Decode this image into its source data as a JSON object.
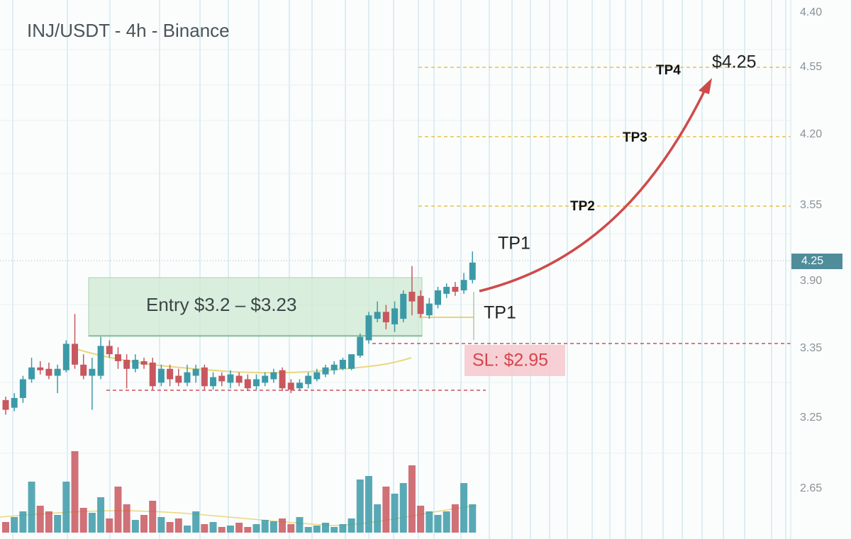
{
  "chart_data": {
    "type": "candlestick",
    "title": "INJ/USDT - 4h - Binance",
    "up_color": "#3c9aa8",
    "down_color": "#c8575f",
    "ylim": [
      3.076,
      3.852
    ],
    "open": [
      3.276,
      3.265,
      3.279,
      3.306,
      3.323,
      3.321,
      3.311,
      3.319,
      3.357,
      3.327,
      3.311,
      3.311,
      3.354,
      3.342,
      3.334,
      3.321,
      3.332,
      3.33,
      3.301,
      3.321,
      3.311,
      3.301,
      3.311,
      3.323,
      3.296,
      3.311,
      3.301,
      3.311,
      3.306,
      3.296,
      3.301,
      3.306,
      3.319,
      3.301,
      3.293,
      3.299,
      3.306,
      3.313,
      3.319,
      3.321,
      3.321,
      3.34,
      3.362,
      3.393,
      3.403,
      3.385,
      3.393,
      3.432,
      3.426,
      3.398,
      3.413,
      3.429,
      3.439,
      3.434,
      3.449
    ],
    "high": [
      3.281,
      3.286,
      3.311,
      3.337,
      3.332,
      3.33,
      3.327,
      3.362,
      3.4,
      3.342,
      3.337,
      3.367,
      3.362,
      3.352,
      3.342,
      3.342,
      3.337,
      3.337,
      3.327,
      3.327,
      3.321,
      3.327,
      3.327,
      3.327,
      3.316,
      3.316,
      3.319,
      3.316,
      3.313,
      3.313,
      3.316,
      3.321,
      3.323,
      3.306,
      3.306,
      3.316,
      3.321,
      3.327,
      3.332,
      3.337,
      3.342,
      3.372,
      3.403,
      3.418,
      3.413,
      3.418,
      3.434,
      3.469,
      3.434,
      3.423,
      3.439,
      3.444,
      3.446,
      3.459,
      3.49
    ],
    "low": [
      3.255,
      3.26,
      3.272,
      3.301,
      3.313,
      3.306,
      3.286,
      3.316,
      3.321,
      3.306,
      3.262,
      3.306,
      3.337,
      3.321,
      3.293,
      3.316,
      3.321,
      3.291,
      3.296,
      3.296,
      3.296,
      3.296,
      3.301,
      3.291,
      3.291,
      3.296,
      3.293,
      3.296,
      3.289,
      3.291,
      3.296,
      3.301,
      3.289,
      3.286,
      3.289,
      3.293,
      3.303,
      3.309,
      3.313,
      3.319,
      3.319,
      3.337,
      3.357,
      3.388,
      3.378,
      3.374,
      3.388,
      3.398,
      3.395,
      3.393,
      3.408,
      3.423,
      3.426,
      3.429,
      3.444
    ],
    "close": [
      3.262,
      3.279,
      3.306,
      3.323,
      3.319,
      3.311,
      3.321,
      3.357,
      3.327,
      3.311,
      3.321,
      3.354,
      3.342,
      3.332,
      3.321,
      3.334,
      3.327,
      3.296,
      3.321,
      3.306,
      3.301,
      3.316,
      3.321,
      3.296,
      3.309,
      3.303,
      3.313,
      3.301,
      3.293,
      3.306,
      3.311,
      3.316,
      3.293,
      3.291,
      3.301,
      3.311,
      3.316,
      3.323,
      3.327,
      3.334,
      3.342,
      3.367,
      3.398,
      3.403,
      3.388,
      3.408,
      3.429,
      3.418,
      3.4,
      3.415,
      3.434,
      3.439,
      3.432,
      3.449,
      3.474
    ],
    "volume": [
      15,
      22,
      30,
      72,
      38,
      30,
      25,
      72,
      115,
      35,
      28,
      50,
      20,
      65,
      40,
      18,
      25,
      45,
      22,
      15,
      20,
      10,
      30,
      12,
      15,
      8,
      10,
      14,
      8,
      12,
      18,
      16,
      20,
      12,
      22,
      8,
      10,
      14,
      8,
      12,
      20,
      75,
      80,
      40,
      65,
      55,
      70,
      95,
      38,
      30,
      25,
      30,
      40,
      70,
      40
    ],
    "volume_lim": [
      0,
      130
    ],
    "price_labels": [
      "4.40",
      "4.55",
      "4.20",
      "3.55",
      "4.25",
      "3.90",
      "3.35",
      "3.25",
      "2.65"
    ],
    "annotations": {
      "entry": "Entry $3.2 – $3.23",
      "stop_loss": "SL: $2.95",
      "tp1_upper": "TP1",
      "tp1_lower": "TP1",
      "tp2": "TP2",
      "tp3": "TP3",
      "tp4": "TP4",
      "target": "$4.25"
    }
  }
}
